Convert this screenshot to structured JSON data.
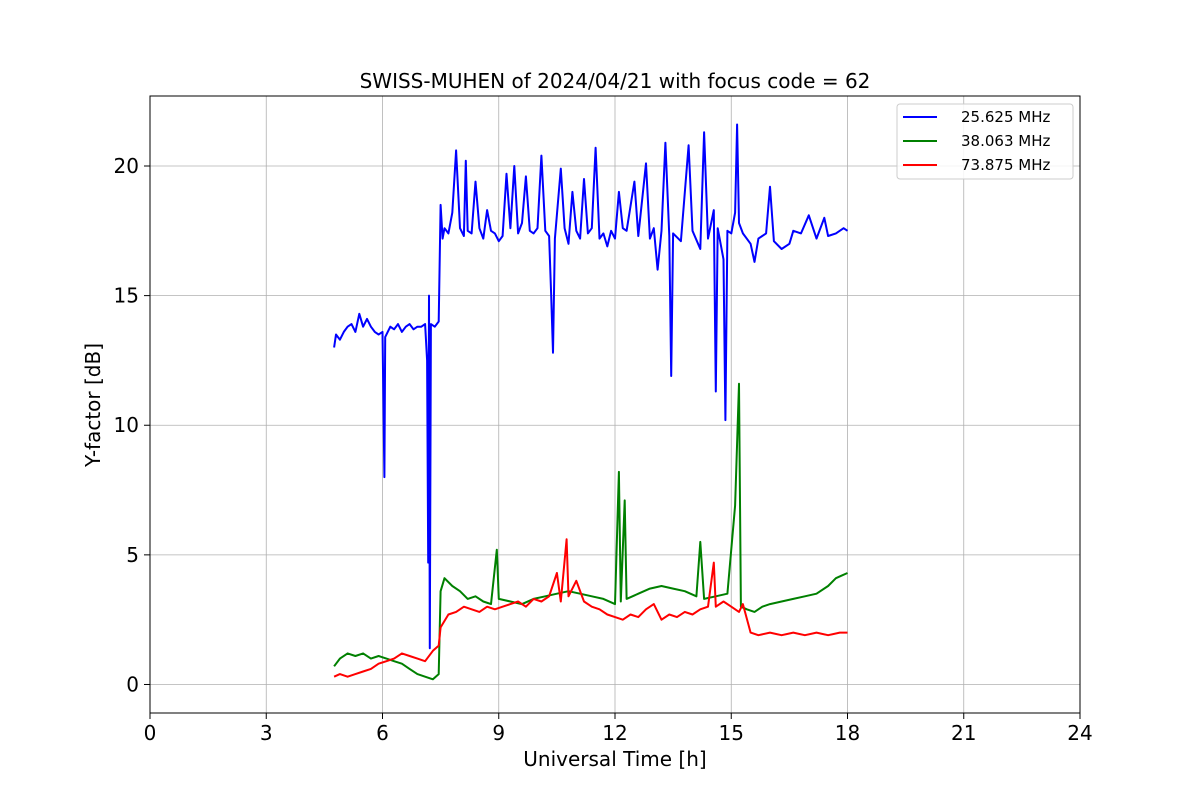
{
  "chart_data": {
    "type": "line",
    "title": "SWISS-MUHEN of 2024/04/21 with focus code = 62",
    "xlabel": "Universal Time [h]",
    "ylabel": "Y-factor [dB]",
    "xlim": [
      0,
      24
    ],
    "ylim": [
      -1.1,
      22.7
    ],
    "xticks": [
      0,
      3,
      6,
      9,
      12,
      15,
      18,
      21,
      24
    ],
    "yticks": [
      0,
      5,
      10,
      15,
      20
    ],
    "grid": true,
    "legend_position": "top-right",
    "series": [
      {
        "name": "25.625 MHz",
        "color": "#0000ff",
        "points": [
          [
            4.75,
            13.0
          ],
          [
            4.8,
            13.5
          ],
          [
            4.9,
            13.3
          ],
          [
            5.0,
            13.6
          ],
          [
            5.1,
            13.8
          ],
          [
            5.2,
            13.9
          ],
          [
            5.3,
            13.6
          ],
          [
            5.4,
            14.3
          ],
          [
            5.5,
            13.8
          ],
          [
            5.6,
            14.1
          ],
          [
            5.7,
            13.8
          ],
          [
            5.8,
            13.6
          ],
          [
            5.9,
            13.5
          ],
          [
            6.0,
            13.6
          ],
          [
            6.05,
            8.0
          ],
          [
            6.07,
            13.4
          ],
          [
            6.2,
            13.8
          ],
          [
            6.3,
            13.7
          ],
          [
            6.4,
            13.9
          ],
          [
            6.5,
            13.6
          ],
          [
            6.6,
            13.8
          ],
          [
            6.7,
            13.9
          ],
          [
            6.8,
            13.7
          ],
          [
            6.9,
            13.8
          ],
          [
            7.0,
            13.8
          ],
          [
            7.1,
            13.9
          ],
          [
            7.15,
            12.5
          ],
          [
            7.18,
            4.7
          ],
          [
            7.2,
            15.0
          ],
          [
            7.22,
            1.4
          ],
          [
            7.25,
            13.9
          ],
          [
            7.35,
            13.8
          ],
          [
            7.45,
            14.0
          ],
          [
            7.5,
            18.5
          ],
          [
            7.55,
            17.2
          ],
          [
            7.6,
            17.6
          ],
          [
            7.7,
            17.4
          ],
          [
            7.8,
            18.2
          ],
          [
            7.9,
            20.6
          ],
          [
            8.0,
            17.6
          ],
          [
            8.1,
            17.3
          ],
          [
            8.15,
            20.2
          ],
          [
            8.2,
            17.5
          ],
          [
            8.3,
            17.4
          ],
          [
            8.4,
            19.4
          ],
          [
            8.5,
            17.6
          ],
          [
            8.6,
            17.2
          ],
          [
            8.7,
            18.3
          ],
          [
            8.8,
            17.5
          ],
          [
            8.9,
            17.4
          ],
          [
            9.0,
            17.1
          ],
          [
            9.1,
            17.3
          ],
          [
            9.2,
            19.7
          ],
          [
            9.3,
            17.6
          ],
          [
            9.4,
            20.0
          ],
          [
            9.5,
            17.4
          ],
          [
            9.6,
            17.8
          ],
          [
            9.7,
            19.6
          ],
          [
            9.8,
            17.5
          ],
          [
            9.9,
            17.4
          ],
          [
            10.0,
            17.6
          ],
          [
            10.1,
            20.4
          ],
          [
            10.2,
            17.5
          ],
          [
            10.3,
            17.3
          ],
          [
            10.35,
            15.1
          ],
          [
            10.4,
            12.8
          ],
          [
            10.45,
            17.2
          ],
          [
            10.6,
            19.9
          ],
          [
            10.7,
            17.6
          ],
          [
            10.8,
            17.0
          ],
          [
            10.9,
            19.0
          ],
          [
            11.0,
            17.5
          ],
          [
            11.1,
            17.2
          ],
          [
            11.2,
            19.5
          ],
          [
            11.3,
            17.4
          ],
          [
            11.4,
            17.6
          ],
          [
            11.5,
            20.7
          ],
          [
            11.6,
            17.2
          ],
          [
            11.7,
            17.4
          ],
          [
            11.8,
            16.9
          ],
          [
            11.9,
            17.5
          ],
          [
            12.0,
            17.2
          ],
          [
            12.1,
            19.0
          ],
          [
            12.2,
            17.6
          ],
          [
            12.3,
            17.5
          ],
          [
            12.5,
            19.4
          ],
          [
            12.6,
            17.3
          ],
          [
            12.8,
            20.1
          ],
          [
            12.9,
            17.2
          ],
          [
            13.0,
            17.6
          ],
          [
            13.1,
            16.0
          ],
          [
            13.2,
            17.5
          ],
          [
            13.3,
            20.9
          ],
          [
            13.4,
            17.3
          ],
          [
            13.45,
            11.9
          ],
          [
            13.5,
            17.4
          ],
          [
            13.7,
            17.1
          ],
          [
            13.9,
            20.8
          ],
          [
            14.0,
            17.5
          ],
          [
            14.2,
            16.8
          ],
          [
            14.3,
            21.3
          ],
          [
            14.4,
            17.2
          ],
          [
            14.55,
            18.3
          ],
          [
            14.6,
            11.3
          ],
          [
            14.65,
            17.6
          ],
          [
            14.8,
            16.4
          ],
          [
            14.85,
            10.2
          ],
          [
            14.9,
            17.5
          ],
          [
            15.0,
            17.4
          ],
          [
            15.1,
            18.2
          ],
          [
            15.15,
            21.6
          ],
          [
            15.2,
            17.8
          ],
          [
            15.3,
            17.4
          ],
          [
            15.5,
            17.0
          ],
          [
            15.6,
            16.3
          ],
          [
            15.7,
            17.2
          ],
          [
            15.9,
            17.4
          ],
          [
            16.0,
            19.2
          ],
          [
            16.1,
            17.1
          ],
          [
            16.3,
            16.8
          ],
          [
            16.5,
            17.0
          ],
          [
            16.6,
            17.5
          ],
          [
            16.8,
            17.4
          ],
          [
            17.0,
            18.1
          ],
          [
            17.2,
            17.2
          ],
          [
            17.4,
            18.0
          ],
          [
            17.5,
            17.3
          ],
          [
            17.7,
            17.4
          ],
          [
            17.9,
            17.6
          ],
          [
            18.0,
            17.5
          ]
        ]
      },
      {
        "name": "38.063 MHz",
        "color": "#008000",
        "points": [
          [
            4.75,
            0.7
          ],
          [
            4.9,
            1.0
          ],
          [
            5.1,
            1.2
          ],
          [
            5.3,
            1.1
          ],
          [
            5.5,
            1.2
          ],
          [
            5.7,
            1.0
          ],
          [
            5.9,
            1.1
          ],
          [
            6.1,
            1.0
          ],
          [
            6.3,
            0.9
          ],
          [
            6.5,
            0.8
          ],
          [
            6.7,
            0.6
          ],
          [
            6.9,
            0.4
          ],
          [
            7.1,
            0.3
          ],
          [
            7.3,
            0.2
          ],
          [
            7.45,
            0.4
          ],
          [
            7.5,
            3.6
          ],
          [
            7.6,
            4.1
          ],
          [
            7.8,
            3.8
          ],
          [
            8.0,
            3.6
          ],
          [
            8.2,
            3.3
          ],
          [
            8.4,
            3.4
          ],
          [
            8.6,
            3.2
          ],
          [
            8.8,
            3.1
          ],
          [
            8.95,
            5.2
          ],
          [
            9.0,
            3.3
          ],
          [
            9.3,
            3.2
          ],
          [
            9.6,
            3.1
          ],
          [
            9.9,
            3.3
          ],
          [
            10.2,
            3.4
          ],
          [
            10.5,
            3.5
          ],
          [
            10.8,
            3.6
          ],
          [
            11.1,
            3.5
          ],
          [
            11.4,
            3.4
          ],
          [
            11.7,
            3.3
          ],
          [
            12.0,
            3.1
          ],
          [
            12.1,
            8.2
          ],
          [
            12.15,
            3.2
          ],
          [
            12.25,
            7.1
          ],
          [
            12.3,
            3.3
          ],
          [
            12.6,
            3.5
          ],
          [
            12.9,
            3.7
          ],
          [
            13.2,
            3.8
          ],
          [
            13.5,
            3.7
          ],
          [
            13.8,
            3.6
          ],
          [
            14.1,
            3.4
          ],
          [
            14.2,
            5.5
          ],
          [
            14.3,
            3.3
          ],
          [
            14.6,
            3.4
          ],
          [
            14.9,
            3.5
          ],
          [
            15.1,
            6.9
          ],
          [
            15.2,
            11.6
          ],
          [
            15.25,
            3.0
          ],
          [
            15.4,
            2.9
          ],
          [
            15.6,
            2.8
          ],
          [
            15.8,
            3.0
          ],
          [
            16.0,
            3.1
          ],
          [
            16.3,
            3.2
          ],
          [
            16.6,
            3.3
          ],
          [
            16.9,
            3.4
          ],
          [
            17.2,
            3.5
          ],
          [
            17.5,
            3.8
          ],
          [
            17.7,
            4.1
          ],
          [
            17.85,
            4.2
          ],
          [
            18.0,
            4.3
          ]
        ]
      },
      {
        "name": "73.875 MHz",
        "color": "#ff0000",
        "points": [
          [
            4.75,
            0.3
          ],
          [
            4.9,
            0.4
          ],
          [
            5.1,
            0.3
          ],
          [
            5.3,
            0.4
          ],
          [
            5.5,
            0.5
          ],
          [
            5.7,
            0.6
          ],
          [
            5.9,
            0.8
          ],
          [
            6.1,
            0.9
          ],
          [
            6.3,
            1.0
          ],
          [
            6.5,
            1.2
          ],
          [
            6.7,
            1.1
          ],
          [
            6.9,
            1.0
          ],
          [
            7.1,
            0.9
          ],
          [
            7.3,
            1.3
          ],
          [
            7.45,
            1.5
          ],
          [
            7.5,
            2.2
          ],
          [
            7.7,
            2.7
          ],
          [
            7.9,
            2.8
          ],
          [
            8.1,
            3.0
          ],
          [
            8.3,
            2.9
          ],
          [
            8.5,
            2.8
          ],
          [
            8.7,
            3.0
          ],
          [
            8.9,
            2.9
          ],
          [
            9.1,
            3.0
          ],
          [
            9.3,
            3.1
          ],
          [
            9.5,
            3.2
          ],
          [
            9.7,
            3.0
          ],
          [
            9.9,
            3.3
          ],
          [
            10.1,
            3.2
          ],
          [
            10.3,
            3.4
          ],
          [
            10.5,
            4.3
          ],
          [
            10.6,
            3.2
          ],
          [
            10.75,
            5.6
          ],
          [
            10.8,
            3.4
          ],
          [
            11.0,
            4.0
          ],
          [
            11.2,
            3.2
          ],
          [
            11.4,
            3.0
          ],
          [
            11.6,
            2.9
          ],
          [
            11.8,
            2.7
          ],
          [
            12.0,
            2.6
          ],
          [
            12.2,
            2.5
          ],
          [
            12.4,
            2.7
          ],
          [
            12.6,
            2.6
          ],
          [
            12.8,
            2.9
          ],
          [
            13.0,
            3.1
          ],
          [
            13.2,
            2.5
          ],
          [
            13.4,
            2.7
          ],
          [
            13.6,
            2.6
          ],
          [
            13.8,
            2.8
          ],
          [
            14.0,
            2.7
          ],
          [
            14.2,
            2.9
          ],
          [
            14.4,
            3.0
          ],
          [
            14.55,
            4.7
          ],
          [
            14.6,
            3.0
          ],
          [
            14.8,
            3.2
          ],
          [
            15.0,
            3.0
          ],
          [
            15.2,
            2.8
          ],
          [
            15.3,
            3.1
          ],
          [
            15.5,
            2.0
          ],
          [
            15.7,
            1.9
          ],
          [
            16.0,
            2.0
          ],
          [
            16.3,
            1.9
          ],
          [
            16.6,
            2.0
          ],
          [
            16.9,
            1.9
          ],
          [
            17.2,
            2.0
          ],
          [
            17.5,
            1.9
          ],
          [
            17.8,
            2.0
          ],
          [
            18.0,
            2.0
          ]
        ]
      }
    ]
  }
}
